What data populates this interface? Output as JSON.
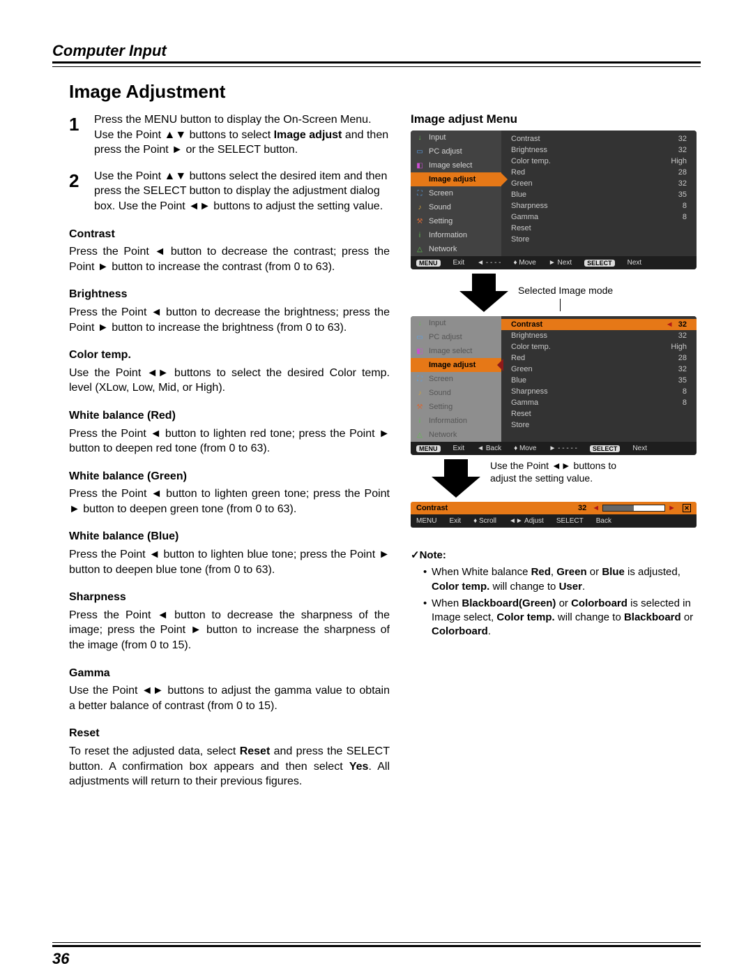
{
  "header": {
    "section": "Computer Input",
    "title": "Image Adjustment",
    "pageNumber": "36"
  },
  "steps": {
    "s1": {
      "num": "1",
      "p1a": "Press the MENU button to display the On-Screen Menu. Use the Point ▲▼ buttons to select ",
      "p1b": "Image adjust",
      "p1c": " and then press the Point ► or the SELECT button."
    },
    "s2": {
      "num": "2",
      "text": "Use the Point ▲▼ buttons select the desired item and then press the SELECT button to display the adjustment dialog box. Use the Point ◄► buttons to adjust the setting value."
    }
  },
  "adjustments": {
    "contrast": {
      "h": "Contrast",
      "t": "Press the Point ◄ button to decrease the contrast; press the Point ► button to increase the contrast (from 0 to 63)."
    },
    "brightness": {
      "h": "Brightness",
      "t": "Press the Point ◄ button to decrease the brightness; press the Point ► button to increase the brightness (from 0 to 63)."
    },
    "colortemp": {
      "h": "Color temp.",
      "t": "Use the Point ◄► buttons to select the desired Color temp. level (XLow, Low, Mid, or High)."
    },
    "wbred": {
      "h": "White balance (Red)",
      "t": "Press the Point ◄ button to lighten red tone; press the Point ► button to deepen red tone (from 0 to 63)."
    },
    "wbgreen": {
      "h": "White balance (Green)",
      "t": "Press the Point ◄ button to lighten green tone; press the Point ► button to deepen green tone (from 0 to 63)."
    },
    "wbblue": {
      "h": "White balance (Blue)",
      "t": "Press the Point ◄ button to lighten blue tone; press the Point ► button to deepen blue tone (from 0 to 63)."
    },
    "sharpness": {
      "h": "Sharpness",
      "t": "Press the Point ◄ button to decrease the sharpness of the image; press the Point ► button to increase the sharpness of the image (from 0 to 15)."
    },
    "gamma": {
      "h": "Gamma",
      "t": "Use the Point ◄► buttons to adjust the gamma value to obtain a better balance of contrast (from 0 to 15)."
    },
    "reset": {
      "h": "Reset",
      "t1": "To reset the adjusted data, select ",
      "tb1": "Reset",
      "t2": " and press the SELECT button. A confirmation box appears and then select ",
      "tb2": "Yes",
      "t3": ". All adjustments will return to their previous figures."
    }
  },
  "right": {
    "heading": "Image adjust Menu",
    "captionSelected": "Selected Image mode",
    "captionPoint": "Use the Point ◄► buttons to adjust the setting value."
  },
  "osd1": {
    "side": [
      {
        "icon": "↓",
        "color": "#5fbf4f",
        "label": "Input"
      },
      {
        "icon": "▭",
        "color": "#5aa0e6",
        "label": "PC adjust"
      },
      {
        "icon": "◧",
        "color": "#c94fd1",
        "label": "Image select"
      },
      {
        "icon": "◉",
        "color": "#e67817",
        "label": "Image adjust",
        "hl": true
      },
      {
        "icon": "⛶",
        "color": "#5aa0e6",
        "label": "Screen"
      },
      {
        "icon": "♪",
        "color": "#cfa23a",
        "label": "Sound"
      },
      {
        "icon": "⚒",
        "color": "#d16a3a",
        "label": "Setting"
      },
      {
        "icon": "i",
        "color": "#5fbf4f",
        "label": "Information"
      },
      {
        "icon": "△",
        "color": "#5fbf4f",
        "label": "Network"
      }
    ],
    "main": [
      {
        "l": "Contrast",
        "v": "32"
      },
      {
        "l": "Brightness",
        "v": "32"
      },
      {
        "l": "Color temp.",
        "v": "High"
      },
      {
        "l": "Red",
        "v": "28"
      },
      {
        "l": "Green",
        "v": "32"
      },
      {
        "l": "Blue",
        "v": "35"
      },
      {
        "l": "Sharpness",
        "v": "8"
      },
      {
        "l": "Gamma",
        "v": "8"
      },
      {
        "l": "Reset",
        "v": ""
      },
      {
        "l": "Store",
        "v": ""
      }
    ],
    "bar": {
      "exit": "Exit",
      "back": "◄  - - - -",
      "move": "♦ Move",
      "next": "► Next",
      "select": "Next"
    }
  },
  "osd2": {
    "side": [
      {
        "icon": "↓",
        "color": "#5fbf4f",
        "label": "Input"
      },
      {
        "icon": "▭",
        "color": "#5aa0e6",
        "label": "PC adjust"
      },
      {
        "icon": "◧",
        "color": "#c94fd1",
        "label": "Image select"
      },
      {
        "icon": "◉",
        "color": "#e67817",
        "label": "Image adjust",
        "hl": true,
        "in": true
      },
      {
        "icon": "⛶",
        "color": "#5aa0e6",
        "label": "Screen"
      },
      {
        "icon": "♪",
        "color": "#cfa23a",
        "label": "Sound"
      },
      {
        "icon": "⚒",
        "color": "#d16a3a",
        "label": "Setting"
      },
      {
        "icon": "i",
        "color": "#5fbf4f",
        "label": "Information"
      },
      {
        "icon": "△",
        "color": "#5fbf4f",
        "label": "Network"
      }
    ],
    "main": [
      {
        "l": "Contrast",
        "v": "32",
        "hl": true
      },
      {
        "l": "Brightness",
        "v": "32"
      },
      {
        "l": "Color temp.",
        "v": "High"
      },
      {
        "l": "Red",
        "v": "28"
      },
      {
        "l": "Green",
        "v": "32"
      },
      {
        "l": "Blue",
        "v": "35"
      },
      {
        "l": "Sharpness",
        "v": "8"
      },
      {
        "l": "Gamma",
        "v": "8"
      },
      {
        "l": "Reset",
        "v": ""
      },
      {
        "l": "Store",
        "v": ""
      }
    ],
    "bar": {
      "exit": "Exit",
      "back": "◄ Back",
      "move": "♦ Move",
      "next": "► - - - - -",
      "select": "Next"
    }
  },
  "strip": {
    "label": "Contrast",
    "value": "32",
    "exit": "Exit",
    "scroll": "♦ Scroll",
    "adjust": "◄► Adjust",
    "back": "Back"
  },
  "note": {
    "h": "✓Note:",
    "i1a": "When White balance ",
    "i1b": "Red",
    "i1c": ", ",
    "i1d": "Green",
    "i1e": " or ",
    "i1f": "Blue",
    "i1g": " is adjusted, ",
    "i1h": "Color temp.",
    "i1i": " will change to ",
    "i1j": "User",
    "i1k": ".",
    "i2a": "When ",
    "i2b": "Blackboard(Green)",
    "i2c": " or ",
    "i2d": "Colorboard",
    "i2e": " is selected in Image select, ",
    "i2f": "Color temp.",
    "i2g": " will change to ",
    "i2h": "Blackboard",
    "i2i": " or ",
    "i2j": "Colorboard",
    "i2k": "."
  },
  "tags": {
    "menu": "MENU",
    "select": "SELECT"
  }
}
